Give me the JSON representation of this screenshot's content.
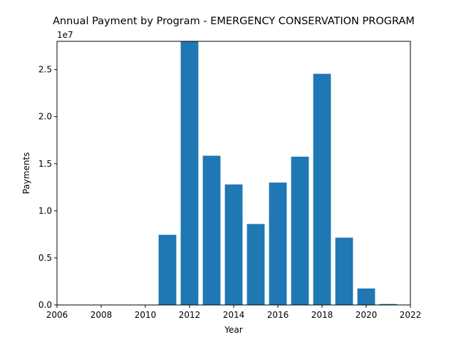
{
  "chart_data": {
    "type": "bar",
    "title": "Annual Payment by Program - EMERGENCY CONSERVATION PROGRAM",
    "xlabel": "Year",
    "ylabel": "Payments",
    "y_offset_label": "1e7",
    "xlim": [
      2006,
      2022
    ],
    "ylim": [
      0,
      28000000
    ],
    "x_ticks": [
      2006,
      2008,
      2010,
      2012,
      2014,
      2016,
      2018,
      2020,
      2022
    ],
    "y_ticks": [
      0,
      5000000,
      10000000,
      15000000,
      20000000,
      25000000
    ],
    "y_tick_labels": [
      "0.0",
      "0.5",
      "1.0",
      "1.5",
      "2.0",
      "2.5"
    ],
    "bar_color": "#1f77b4",
    "grid": false,
    "x": [
      2011,
      2012,
      2013,
      2014,
      2015,
      2016,
      2017,
      2018,
      2019,
      2020,
      2021
    ],
    "values": [
      7450000,
      28000000,
      15850000,
      12800000,
      8600000,
      13000000,
      15750000,
      24550000,
      7150000,
      1750000,
      100000
    ]
  }
}
